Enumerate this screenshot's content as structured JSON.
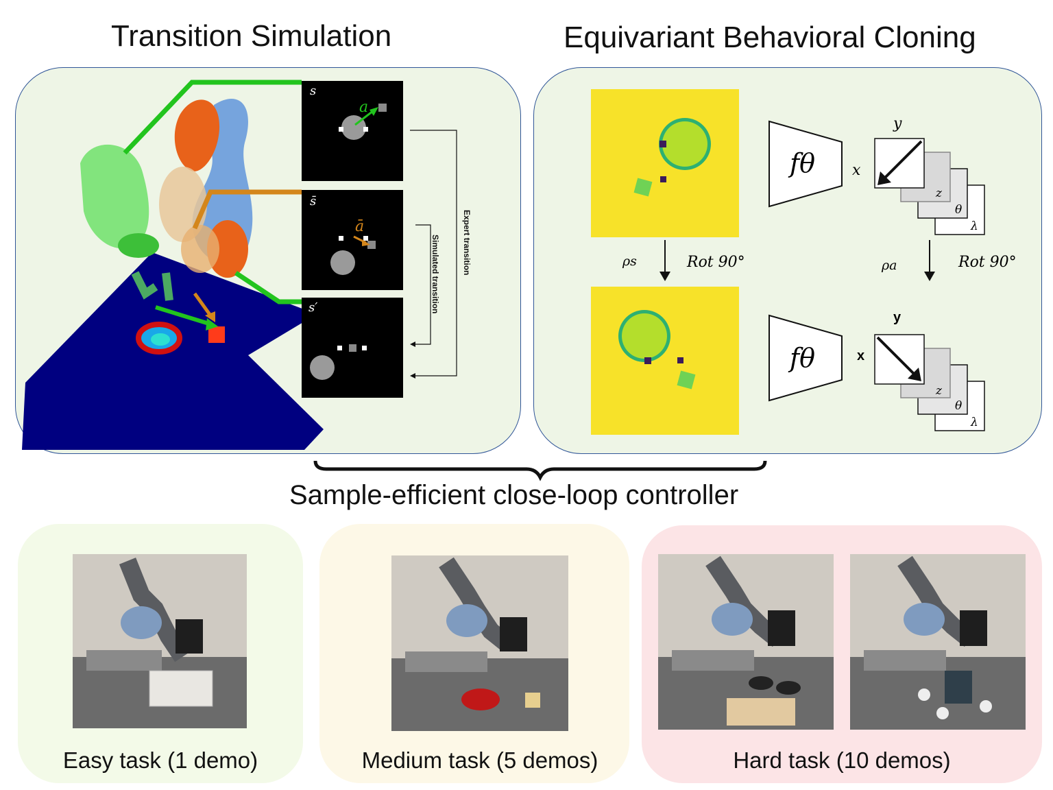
{
  "titles": {
    "left": "Transition Simulation",
    "right": "Equivariant Behavioral Cloning",
    "brace": "Sample-efficient close-loop controller"
  },
  "sim": {
    "state_labels": [
      "s",
      "s̄",
      "s′"
    ],
    "action_labels": [
      "a",
      "ā"
    ],
    "expert": "Expert transition",
    "simulated": "Simulated transition"
  },
  "bc": {
    "network": "fθ",
    "x_label": "x",
    "y_label": "y",
    "maps": [
      "z",
      "θ",
      "λ"
    ],
    "rho_s": "ρs",
    "rho_a": "ρa",
    "rot": "Rot 90°"
  },
  "tasks": [
    {
      "label": "Easy task (1 demo)",
      "color": "#f3fae8"
    },
    {
      "label": "Medium task (5 demos)",
      "color": "#fdf8e7"
    },
    {
      "label": "Hard task (10 demos)",
      "color": "#fce4e6"
    }
  ],
  "colors": {
    "panel_border": "#2f5597",
    "panel_fill": "#eef5e6",
    "green": "#22c41e",
    "orange": "#d4861b",
    "yellow_map": "#f7e229",
    "floor": "#000080"
  }
}
